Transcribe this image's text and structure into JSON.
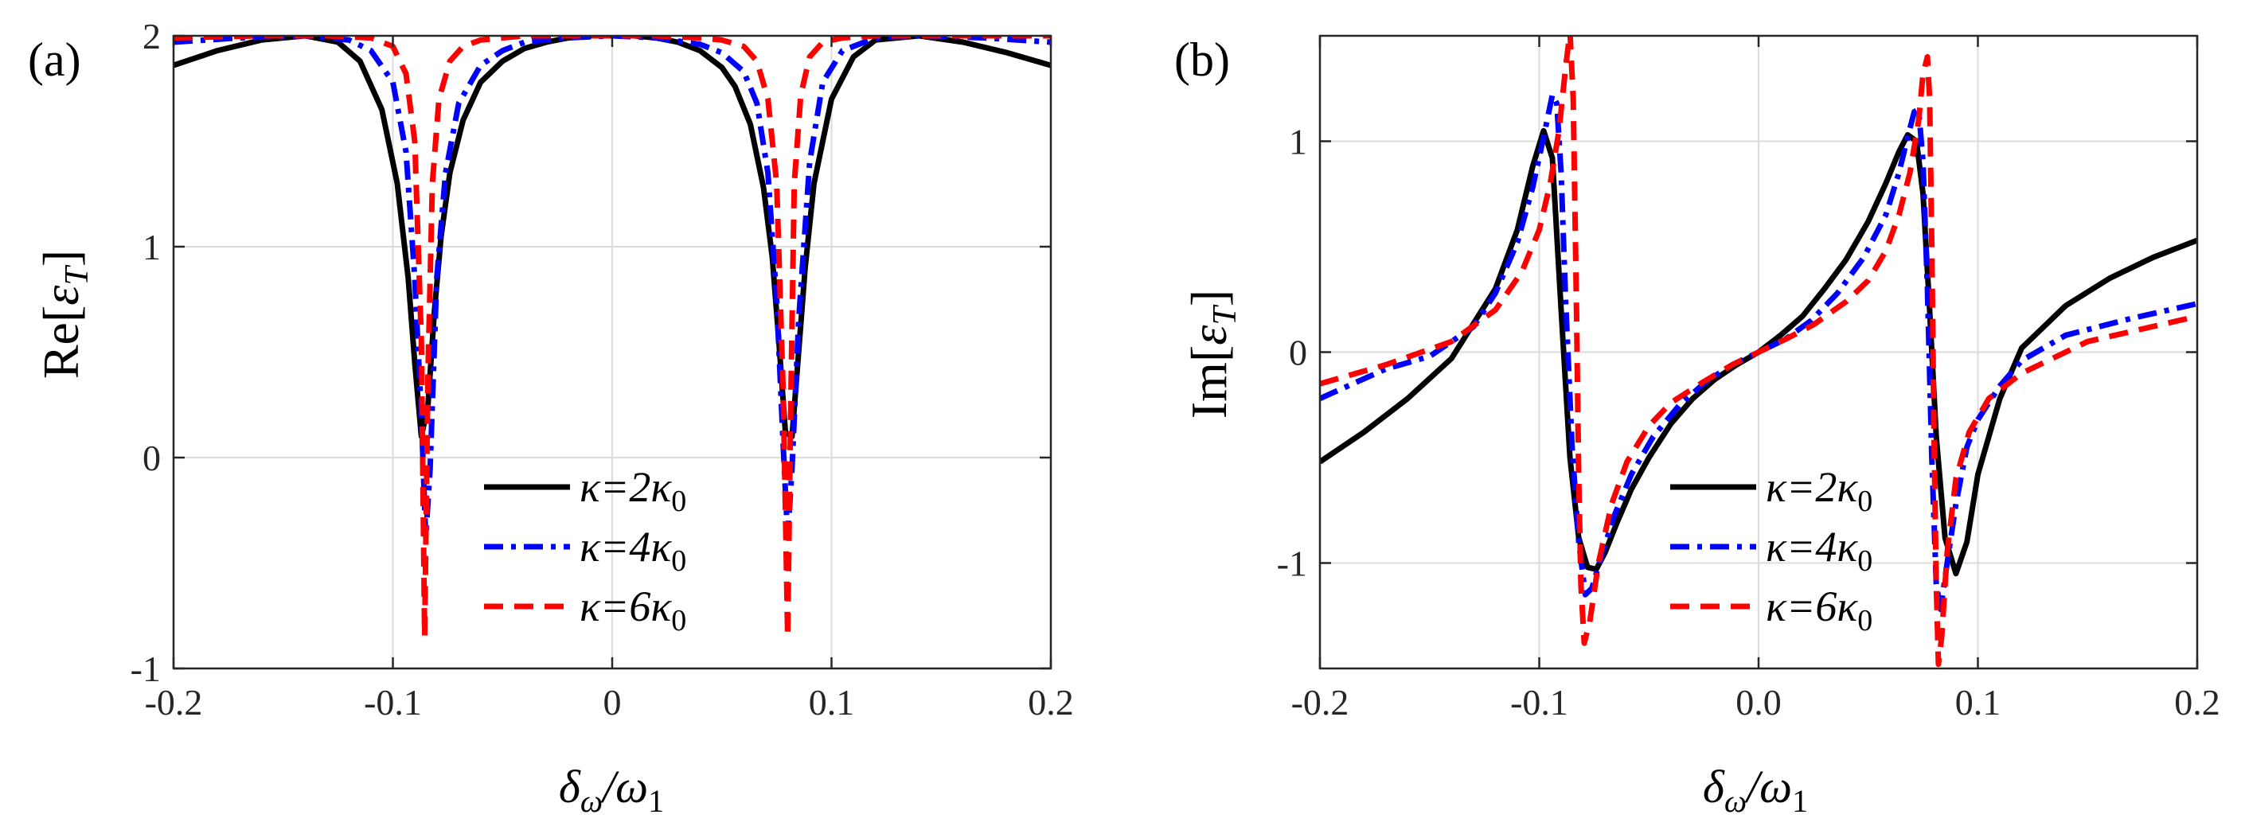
{
  "chart_data": [
    {
      "type": "line",
      "panel_label": "(a)",
      "ylabel": "Re[εT]",
      "ylabel_main": "Re[",
      "ylabel_symbol": "ε",
      "ylabel_sub": "T",
      "ylabel_close": "]",
      "xlabel_main": "δ",
      "xlabel_sub_num": "ω",
      "xlabel_slash": "/ω",
      "xlabel_sub_den": "1",
      "xlim": [
        -0.2,
        0.2
      ],
      "ylim": [
        -1,
        2
      ],
      "xticks": [
        -0.2,
        -0.1,
        0,
        0.1,
        0.2
      ],
      "xtick_labels": [
        "-0.2",
        "-0.1",
        "0",
        "0.1",
        "0.2"
      ],
      "yticks": [
        -1,
        0,
        1,
        2
      ],
      "ytick_labels": [
        "-1",
        "0",
        "1",
        "2"
      ],
      "grid": true,
      "legend_position": "lower-right",
      "series": [
        {
          "name": "κ=2κ0",
          "legend_main": "κ=2κ",
          "legend_sub": "0",
          "color": "#000000",
          "dash": "solid",
          "x": [
            -0.2,
            -0.18,
            -0.16,
            -0.14,
            -0.125,
            -0.115,
            -0.105,
            -0.098,
            -0.093,
            -0.09,
            -0.087,
            -0.084,
            -0.081,
            -0.078,
            -0.074,
            -0.068,
            -0.06,
            -0.05,
            -0.04,
            -0.03,
            -0.02,
            -0.01,
            0,
            0.01,
            0.02,
            0.03,
            0.04,
            0.05,
            0.056,
            0.063,
            0.069,
            0.073,
            0.076,
            0.079,
            0.082,
            0.085,
            0.088,
            0.092,
            0.1,
            0.11,
            0.12,
            0.14,
            0.16,
            0.18,
            0.2
          ],
          "y": [
            1.86,
            1.93,
            1.98,
            2.0,
            1.97,
            1.88,
            1.65,
            1.3,
            0.85,
            0.45,
            0.1,
            0.25,
            0.7,
            1.05,
            1.35,
            1.6,
            1.78,
            1.88,
            1.94,
            1.97,
            1.99,
            2.0,
            2.0,
            2.0,
            1.99,
            1.97,
            1.93,
            1.85,
            1.76,
            1.58,
            1.28,
            0.95,
            0.55,
            0.12,
            0.1,
            0.5,
            0.9,
            1.3,
            1.7,
            1.9,
            1.98,
            2.0,
            1.97,
            1.92,
            1.86
          ]
        },
        {
          "name": "κ=4κ0",
          "legend_main": "κ=4κ",
          "legend_sub": "0",
          "color": "#0000ff",
          "dash": "dashdot",
          "x": [
            -0.2,
            -0.17,
            -0.14,
            -0.12,
            -0.11,
            -0.1,
            -0.094,
            -0.09,
            -0.087,
            -0.085,
            -0.083,
            -0.08,
            -0.076,
            -0.07,
            -0.06,
            -0.05,
            -0.04,
            -0.02,
            0,
            0.02,
            0.04,
            0.05,
            0.06,
            0.066,
            0.071,
            0.075,
            0.078,
            0.08,
            0.082,
            0.085,
            0.09,
            0.096,
            0.105,
            0.12,
            0.14,
            0.17,
            0.2
          ],
          "y": [
            1.97,
            1.99,
            2.0,
            1.98,
            1.93,
            1.78,
            1.45,
            0.85,
            0.2,
            -0.38,
            -0.05,
            0.85,
            1.35,
            1.68,
            1.86,
            1.93,
            1.97,
            1.99,
            2.0,
            1.99,
            1.96,
            1.92,
            1.83,
            1.68,
            1.35,
            0.75,
            0.05,
            -0.38,
            -0.05,
            0.65,
            1.4,
            1.78,
            1.93,
            1.99,
            2.0,
            1.99,
            1.97
          ]
        },
        {
          "name": "κ=6κ0",
          "legend_main": "κ=6κ",
          "legend_sub": "0",
          "color": "#ff0000",
          "dash": "dashed",
          "x": [
            -0.2,
            -0.16,
            -0.13,
            -0.11,
            -0.1,
            -0.094,
            -0.09,
            -0.087,
            -0.0855,
            -0.084,
            -0.082,
            -0.079,
            -0.074,
            -0.068,
            -0.06,
            -0.05,
            -0.04,
            -0.02,
            0,
            0.02,
            0.04,
            0.05,
            0.06,
            0.066,
            0.071,
            0.075,
            0.078,
            0.08,
            0.0815,
            0.083,
            0.086,
            0.09,
            0.096,
            0.105,
            0.12,
            0.15,
            0.2
          ],
          "y": [
            1.99,
            2.0,
            2.0,
            1.99,
            1.95,
            1.82,
            1.5,
            0.55,
            -0.85,
            0.4,
            1.3,
            1.7,
            1.88,
            1.95,
            1.98,
            1.99,
            2.0,
            2.0,
            2.0,
            2.0,
            1.99,
            1.98,
            1.95,
            1.88,
            1.7,
            1.3,
            0.3,
            -0.85,
            0.3,
            1.3,
            1.72,
            1.9,
            1.97,
            1.99,
            2.0,
            2.0,
            2.0
          ]
        }
      ]
    },
    {
      "type": "line",
      "panel_label": "(b)",
      "ylabel": "Im[εT]",
      "ylabel_main": "Im[",
      "ylabel_symbol": "ε",
      "ylabel_sub": "T",
      "ylabel_close": "]",
      "xlabel_main": "δ",
      "xlabel_sub_num": "ω",
      "xlabel_slash": "/ω",
      "xlabel_sub_den": "1",
      "xlim": [
        -0.2,
        0.2
      ],
      "ylim": [
        -1.5,
        1.5
      ],
      "xticks": [
        -0.2,
        -0.1,
        0,
        0.1,
        0.2
      ],
      "xtick_labels": [
        "-0.2",
        "-0.1",
        "0.0",
        "0.1",
        "0.2"
      ],
      "yticks": [
        -1,
        0,
        1
      ],
      "ytick_labels": [
        "-1",
        "0",
        "1"
      ],
      "grid": true,
      "legend_position": "lower-right",
      "series": [
        {
          "name": "κ=2κ0",
          "legend_main": "κ=2κ",
          "legend_sub": "0",
          "color": "#000000",
          "dash": "solid",
          "x": [
            -0.2,
            -0.18,
            -0.16,
            -0.14,
            -0.12,
            -0.11,
            -0.103,
            -0.098,
            -0.094,
            -0.09,
            -0.086,
            -0.082,
            -0.078,
            -0.074,
            -0.07,
            -0.065,
            -0.058,
            -0.05,
            -0.04,
            -0.03,
            -0.02,
            -0.01,
            0,
            0.01,
            0.02,
            0.03,
            0.04,
            0.05,
            0.058,
            0.064,
            0.068,
            0.072,
            0.075,
            0.078,
            0.081,
            0.085,
            0.09,
            0.095,
            0.1,
            0.11,
            0.12,
            0.14,
            0.16,
            0.18,
            0.2
          ],
          "y": [
            -0.52,
            -0.38,
            -0.22,
            -0.03,
            0.3,
            0.58,
            0.88,
            1.05,
            0.92,
            0.2,
            -0.5,
            -0.88,
            -1.02,
            -1.03,
            -0.95,
            -0.82,
            -0.65,
            -0.5,
            -0.34,
            -0.22,
            -0.13,
            -0.06,
            0,
            0.08,
            0.17,
            0.3,
            0.44,
            0.62,
            0.8,
            0.95,
            1.03,
            1.0,
            0.75,
            0.2,
            -0.4,
            -0.88,
            -1.05,
            -0.9,
            -0.58,
            -0.22,
            0.02,
            0.22,
            0.35,
            0.45,
            0.53
          ]
        },
        {
          "name": "κ=4κ0",
          "legend_main": "κ=4κ",
          "legend_sub": "0",
          "color": "#0000ff",
          "dash": "dashdot",
          "x": [
            -0.2,
            -0.17,
            -0.15,
            -0.13,
            -0.12,
            -0.11,
            -0.103,
            -0.098,
            -0.094,
            -0.092,
            -0.09,
            -0.088,
            -0.085,
            -0.082,
            -0.079,
            -0.076,
            -0.072,
            -0.066,
            -0.058,
            -0.048,
            -0.036,
            -0.024,
            -0.012,
            0,
            0.012,
            0.024,
            0.036,
            0.048,
            0.058,
            0.064,
            0.068,
            0.071,
            0.073,
            0.075,
            0.077,
            0.079,
            0.081,
            0.083,
            0.086,
            0.09,
            0.095,
            0.1,
            0.11,
            0.12,
            0.14,
            0.17,
            0.2
          ],
          "y": [
            -0.22,
            -0.08,
            -0.02,
            0.12,
            0.28,
            0.52,
            0.78,
            1.02,
            1.22,
            1.18,
            0.85,
            0.25,
            -0.45,
            -0.9,
            -1.15,
            -1.12,
            -0.98,
            -0.78,
            -0.58,
            -0.4,
            -0.25,
            -0.14,
            -0.06,
            0,
            0.06,
            0.15,
            0.28,
            0.45,
            0.65,
            0.85,
            1.02,
            1.14,
            1.15,
            0.9,
            0.3,
            -0.5,
            -1.1,
            -1.22,
            -1.0,
            -0.72,
            -0.45,
            -0.32,
            -0.16,
            -0.04,
            0.08,
            0.16,
            0.23
          ]
        },
        {
          "name": "κ=6κ0",
          "legend_main": "κ=6κ",
          "legend_sub": "0",
          "color": "#ff0000",
          "dash": "dashed",
          "x": [
            -0.2,
            -0.17,
            -0.14,
            -0.12,
            -0.108,
            -0.1,
            -0.095,
            -0.091,
            -0.088,
            -0.086,
            -0.0845,
            -0.083,
            -0.082,
            -0.081,
            -0.0795,
            -0.077,
            -0.073,
            -0.067,
            -0.06,
            -0.05,
            -0.04,
            -0.025,
            -0.012,
            0,
            0.012,
            0.025,
            0.04,
            0.05,
            0.058,
            0.064,
            0.069,
            0.073,
            0.075,
            0.077,
            0.078,
            0.079,
            0.08,
            0.081,
            0.082,
            0.0835,
            0.086,
            0.09,
            0.096,
            0.105,
            0.12,
            0.15,
            0.2
          ],
          "y": [
            -0.15,
            -0.06,
            0.05,
            0.2,
            0.38,
            0.58,
            0.8,
            1.05,
            1.35,
            1.52,
            1.2,
            0.2,
            -0.6,
            -1.1,
            -1.38,
            -1.28,
            -1.0,
            -0.72,
            -0.52,
            -0.35,
            -0.24,
            -0.14,
            -0.06,
            0,
            0.06,
            0.13,
            0.24,
            0.34,
            0.48,
            0.65,
            0.85,
            1.1,
            1.32,
            1.4,
            1.2,
            0.5,
            -0.4,
            -1.1,
            -1.48,
            -1.35,
            -0.95,
            -0.6,
            -0.38,
            -0.22,
            -0.1,
            0.05,
            0.17
          ]
        }
      ]
    }
  ]
}
